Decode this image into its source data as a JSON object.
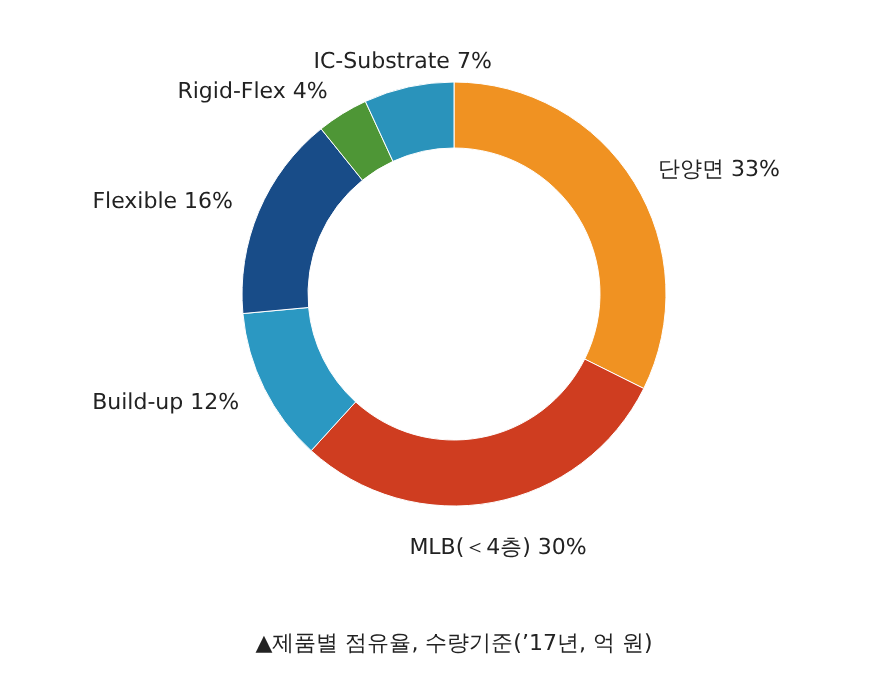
{
  "chart_data": {
    "type": "donut",
    "categories": [
      "단양면",
      "MLB(＜4층)",
      "Build-up",
      "Flexible",
      "Rigid-Flex",
      "IC-Substrate"
    ],
    "values": [
      33,
      30,
      12,
      16,
      4,
      7
    ],
    "value_labels": [
      "33%",
      "30%",
      "12%",
      "16%",
      "4%",
      "7%"
    ],
    "colors": [
      "#f09222",
      "#cf3d20",
      "#2b98c2",
      "#184c88",
      "#4e9636",
      "#2a93bb"
    ],
    "annotations": [
      "▲제품별 점유율, 수량기준(’17년, 억 원)"
    ]
  }
}
